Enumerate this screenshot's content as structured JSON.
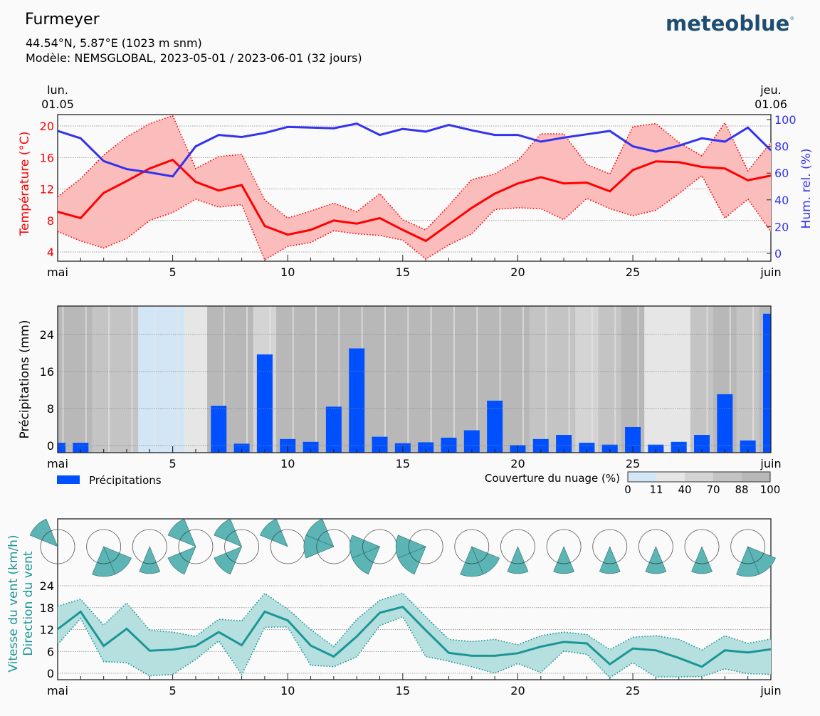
{
  "header": {
    "title": "Furmeyer",
    "coords": "44.54°N, 5.87°E (1023 m snm)",
    "model": "Modèle: NEMSGLOBAL, 2023-05-01 / 2023-06-01 (32 jours)",
    "logo": "meteoblue",
    "start_day": "lun.",
    "start_date": "01.05",
    "end_day": "jeu.",
    "end_date": "01.06"
  },
  "colors": {
    "temp": "#ff0000",
    "temp_fill": "#fbbcbc",
    "humidity": "#3333ee",
    "precip": "#0050ff",
    "wind": "#1a9696",
    "wind_fill": "#b6dfdf",
    "wind_rose": "#5cb4b4",
    "logo": "#1e4d72"
  },
  "chart_data": [
    {
      "type": "line",
      "name": "temperature-humidity",
      "x": [
        1,
        2,
        3,
        4,
        5,
        6,
        7,
        8,
        9,
        10,
        11,
        12,
        13,
        14,
        15,
        16,
        17,
        18,
        19,
        20,
        21,
        22,
        23,
        24,
        25,
        26,
        27,
        28,
        29,
        30,
        31,
        32
      ],
      "xticks": [
        "mai",
        "5",
        "10",
        "15",
        "20",
        "25",
        "juin"
      ],
      "ylabel": "Température (°C)",
      "y2label": "Hum. rel. (%)",
      "yticks": [
        4,
        8,
        12,
        16,
        20
      ],
      "y2ticks": [
        0,
        20,
        40,
        60,
        80,
        100
      ],
      "ylim": [
        2.8,
        21.4
      ],
      "y2lim": [
        -6,
        103
      ],
      "grid": true,
      "series": [
        {
          "name": "Température moyenne",
          "axis": "left",
          "values": [
            9.1,
            8.3,
            11.5,
            13.0,
            14.6,
            15.7,
            12.9,
            11.8,
            12.5,
            7.3,
            6.2,
            6.8,
            8.0,
            7.6,
            8.3,
            6.8,
            5.4,
            7.5,
            9.6,
            11.4,
            12.7,
            13.5,
            12.7,
            12.8,
            11.7,
            14.4,
            15.5,
            15.4,
            14.8,
            14.6,
            13.1,
            13.7
          ]
        },
        {
          "name": "Température max",
          "axis": "left",
          "values": [
            11.0,
            13.3,
            16.3,
            18.6,
            20.3,
            21.3,
            14.6,
            16.1,
            16.4,
            10.6,
            8.3,
            9.2,
            10.2,
            9.1,
            11.4,
            8.1,
            6.8,
            9.9,
            13.2,
            13.9,
            15.6,
            19.0,
            19.0,
            15.1,
            13.9,
            19.9,
            20.3,
            17.9,
            16.2,
            20.4,
            14.3,
            17.9
          ]
        },
        {
          "name": "Température min",
          "axis": "left",
          "values": [
            6.6,
            5.4,
            4.5,
            5.7,
            8.0,
            9.0,
            10.7,
            9.7,
            10.0,
            3.0,
            4.7,
            5.2,
            6.7,
            6.3,
            6.1,
            5.5,
            3.1,
            4.9,
            6.3,
            9.4,
            9.6,
            9.5,
            8.1,
            10.8,
            9.5,
            8.6,
            9.3,
            11.4,
            13.7,
            8.3,
            10.7,
            6.6
          ]
        },
        {
          "name": "Humidité relative",
          "axis": "right",
          "values": [
            91.5,
            86,
            69,
            63,
            60.5,
            57.5,
            80,
            88.5,
            87,
            90,
            94.5,
            94,
            93.5,
            97,
            88.5,
            93,
            91,
            96,
            92,
            88.5,
            88.5,
            83.5,
            86.5,
            89,
            91.5,
            80,
            76,
            80.5,
            86,
            83.5,
            94,
            77
          ]
        }
      ]
    },
    {
      "type": "bar",
      "name": "precipitation",
      "x": [
        1,
        2,
        3,
        4,
        5,
        6,
        7,
        8,
        9,
        10,
        11,
        12,
        13,
        14,
        15,
        16,
        17,
        18,
        19,
        20,
        21,
        22,
        23,
        24,
        25,
        26,
        27,
        28,
        29,
        30,
        31,
        32
      ],
      "xticks": [
        "mai",
        "5",
        "10",
        "15",
        "20",
        "25",
        "juin"
      ],
      "ylabel": "Précipitations (mm)",
      "yticks": [
        0,
        8,
        16,
        24
      ],
      "ylim": [
        -1.5,
        30.2
      ],
      "grid": true,
      "legend": "Précipitations",
      "legend_position": "bottom-left",
      "values": [
        0.6,
        0.6,
        0,
        0,
        0,
        0,
        0,
        8.6,
        0.4,
        19.7,
        1.4,
        0.8,
        8.4,
        21.0,
        1.9,
        0.5,
        0.7,
        1.7,
        3.3,
        9.7,
        0.1,
        1.4,
        2.3,
        0.6,
        0.2,
        4.0,
        0.2,
        0.8,
        2.3,
        11.1,
        1.1,
        28.5
      ],
      "cloud_cover_legend": {
        "label": "Couverture du nuage (%)",
        "ticks": [
          "0",
          "11",
          "40",
          "70",
          "88",
          "100"
        ],
        "colors": [
          "#d2e6f5",
          "#e6e6e6",
          "#d4d4d4",
          "#c4c4c4",
          "#b8b8b8"
        ]
      },
      "cloud_cover_daily_pct": [
        95,
        90,
        70,
        85,
        5,
        8,
        30,
        98,
        98,
        60,
        98,
        98,
        98,
        98,
        98,
        92,
        98,
        98,
        98,
        98,
        96,
        70,
        75,
        60,
        80,
        95,
        35,
        20,
        85,
        92,
        80,
        96
      ]
    },
    {
      "type": "line",
      "name": "wind",
      "x": [
        1,
        2,
        3,
        4,
        5,
        6,
        7,
        8,
        9,
        10,
        11,
        12,
        13,
        14,
        15,
        16,
        17,
        18,
        19,
        20,
        21,
        22,
        23,
        24,
        25,
        26,
        27,
        28,
        29,
        30,
        31,
        32
      ],
      "xticks": [
        "mai",
        "5",
        "10",
        "15",
        "20",
        "25",
        "juin"
      ],
      "ylabel": "Vitesse du vent (km/h)",
      "ylabel2": "Direction du vent",
      "yticks": [
        0,
        6,
        12,
        18,
        24
      ],
      "ylim": [
        -1.7,
        40
      ],
      "grid": true,
      "series": [
        {
          "name": "Vitesse moyenne",
          "values": [
            12.1,
            16.9,
            7.5,
            12.2,
            6.2,
            6.5,
            7.5,
            11.3,
            7.7,
            16.9,
            14.5,
            7.6,
            4.6,
            10.1,
            16.6,
            18.2,
            11.8,
            5.6,
            4.8,
            4.8,
            5.5,
            7.3,
            8.6,
            8.2,
            2.5,
            6.8,
            6.3,
            4.2,
            1.8,
            6.3,
            5.7,
            6.6
          ]
        },
        {
          "name": "Vitesse max",
          "values": [
            18.4,
            20.3,
            13.2,
            19.3,
            11.8,
            11.3,
            10.1,
            14.8,
            14.4,
            21.9,
            17.6,
            12.0,
            7.3,
            14.8,
            20.0,
            22.0,
            15.5,
            9.3,
            8.7,
            9.3,
            7.8,
            10.3,
            11.3,
            10.6,
            6.5,
            9.9,
            10.3,
            9.3,
            6.4,
            10.3,
            8.2,
            9.4
          ]
        },
        {
          "name": "Vitesse min",
          "values": [
            7.9,
            15.0,
            3.2,
            2.9,
            -0.7,
            -0.3,
            3.8,
            8.9,
            -0.4,
            12.6,
            12.7,
            2.2,
            1.8,
            4.5,
            13.1,
            15.5,
            4.6,
            3.3,
            1.8,
            0.0,
            2.7,
            0.2,
            6.1,
            5.2,
            -1.2,
            2.9,
            -1.0,
            -1.0,
            -0.9,
            1.2,
            -0.1,
            -0.3
          ]
        }
      ],
      "wind_roses": [
        {
          "day": 2,
          "sectors": [
            {
              "dir": 315,
              "freq": 1.0
            }
          ]
        },
        {
          "day": 4,
          "sectors": [
            {
              "dir": 180,
              "freq": 1.0
            },
            {
              "dir": 135,
              "freq": 1.0
            }
          ]
        },
        {
          "day": 6,
          "sectors": [
            {
              "dir": 180,
              "freq": 0.9
            }
          ]
        },
        {
          "day": 8,
          "sectors": [
            {
              "dir": 315,
              "freq": 1.0
            },
            {
              "dir": 225,
              "freq": 1.0
            }
          ]
        },
        {
          "day": 10,
          "sectors": [
            {
              "dir": 315,
              "freq": 1.0
            },
            {
              "dir": 225,
              "freq": 1.0
            }
          ]
        },
        {
          "day": 12,
          "sectors": [
            {
              "dir": 315,
              "freq": 1.0
            }
          ]
        },
        {
          "day": 14,
          "sectors": [
            {
              "dir": 315,
              "freq": 1.0
            },
            {
              "dir": 270,
              "freq": 1.0
            }
          ]
        },
        {
          "day": 16,
          "sectors": [
            {
              "dir": 270,
              "freq": 1.0
            },
            {
              "dir": 225,
              "freq": 1.0
            }
          ]
        },
        {
          "day": 18,
          "sectors": [
            {
              "dir": 270,
              "freq": 1.0
            },
            {
              "dir": 225,
              "freq": 1.0
            }
          ]
        },
        {
          "day": 20,
          "sectors": [
            {
              "dir": 180,
              "freq": 1.0
            },
            {
              "dir": 135,
              "freq": 1.0
            }
          ]
        },
        {
          "day": 22,
          "sectors": [
            {
              "dir": 180,
              "freq": 0.9
            }
          ]
        },
        {
          "day": 24,
          "sectors": [
            {
              "dir": 180,
              "freq": 0.9
            }
          ]
        },
        {
          "day": 26,
          "sectors": [
            {
              "dir": 180,
              "freq": 0.9
            }
          ]
        },
        {
          "day": 28,
          "sectors": [
            {
              "dir": 180,
              "freq": 0.9
            }
          ]
        },
        {
          "day": 30,
          "sectors": [
            {
              "dir": 180,
              "freq": 0.9
            }
          ]
        },
        {
          "day": 32,
          "sectors": [
            {
              "dir": 180,
              "freq": 1.0
            },
            {
              "dir": 135,
              "freq": 1.0
            }
          ]
        }
      ]
    }
  ]
}
